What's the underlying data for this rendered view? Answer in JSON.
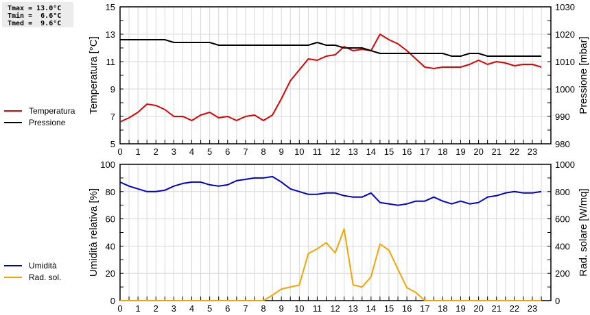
{
  "stats": {
    "lines": [
      "Tmax = 13.0°C",
      "Tmin =  6.6°C",
      "Tmed =  9.6°C"
    ]
  },
  "legend_top": [
    {
      "label": "Temperatura",
      "color": "#e00000"
    },
    {
      "label": "Pressione",
      "color": "#000000"
    }
  ],
  "legend_bottom": [
    {
      "label": "Umidità",
      "color": "#0000cc"
    },
    {
      "label": "Rad. sol.",
      "color": "#f5a300"
    }
  ],
  "chart_data": [
    {
      "type": "line",
      "title": "",
      "xlabel": "",
      "ylabel": "Temperatura [°C]",
      "y2label": "Pressione [mbar]",
      "ylim": [
        5,
        15
      ],
      "y2lim": [
        980,
        1030
      ],
      "yticks": [
        5,
        7,
        9,
        11,
        13,
        15
      ],
      "y2ticks": [
        980,
        990,
        1000,
        1010,
        1020,
        1030
      ],
      "xticks": [
        0,
        1,
        2,
        3,
        4,
        5,
        6,
        7,
        8,
        9,
        10,
        11,
        12,
        13,
        14,
        15,
        16,
        17,
        18,
        19,
        20,
        21,
        22,
        23
      ],
      "grid": true,
      "legend_position": "left",
      "x": [
        0,
        0.5,
        1,
        1.5,
        2,
        2.5,
        3,
        3.5,
        4,
        4.5,
        5,
        5.5,
        6,
        6.5,
        7,
        7.5,
        8,
        8.5,
        9,
        9.5,
        10,
        10.5,
        11,
        11.5,
        12,
        12.5,
        13,
        13.5,
        14,
        14.5,
        15,
        15.5,
        16,
        16.5,
        17,
        17.5,
        18,
        18.5,
        19,
        19.5,
        20,
        20.5,
        21,
        21.5,
        22,
        22.5,
        23,
        23.5
      ],
      "series": [
        {
          "name": "Temperatura",
          "axis": "left",
          "color": "#e00000",
          "values": [
            6.6,
            6.9,
            7.3,
            7.9,
            7.8,
            7.5,
            7.0,
            7.0,
            6.7,
            7.1,
            7.3,
            6.9,
            7.0,
            6.7,
            7.0,
            7.1,
            6.7,
            7.1,
            8.3,
            9.6,
            10.4,
            11.2,
            11.1,
            11.4,
            11.5,
            12.1,
            11.8,
            11.9,
            11.8,
            13.0,
            12.6,
            12.3,
            11.8,
            11.2,
            10.6,
            10.5,
            10.6,
            10.6,
            10.6,
            10.8,
            11.1,
            10.8,
            11.0,
            10.9,
            10.7,
            10.8,
            10.8,
            10.6
          ]
        },
        {
          "name": "Pressione",
          "axis": "right",
          "color": "#000000",
          "values": [
            1018,
            1018,
            1018,
            1018,
            1018,
            1018,
            1017,
            1017,
            1017,
            1017,
            1017,
            1016,
            1016,
            1016,
            1016,
            1016,
            1016,
            1016,
            1016,
            1016,
            1016,
            1016,
            1017,
            1016,
            1016,
            1015,
            1015,
            1015,
            1014,
            1013,
            1013,
            1013,
            1013,
            1013,
            1013,
            1013,
            1013,
            1012,
            1012,
            1013,
            1013,
            1012,
            1012,
            1012,
            1012,
            1012,
            1012,
            1012
          ]
        }
      ]
    },
    {
      "type": "line",
      "title": "",
      "xlabel": "",
      "ylabel": "Umidità relativa [%]",
      "y2label": "Rad. solare [W/mq]",
      "ylim": [
        0,
        100
      ],
      "y2lim": [
        0,
        1000
      ],
      "yticks": [
        0,
        20,
        40,
        60,
        80,
        100
      ],
      "y2ticks": [
        0,
        200,
        400,
        600,
        800,
        1000
      ],
      "xticks": [
        0,
        1,
        2,
        3,
        4,
        5,
        6,
        7,
        8,
        9,
        10,
        11,
        12,
        13,
        14,
        15,
        16,
        17,
        18,
        19,
        20,
        21,
        22,
        23
      ],
      "grid": true,
      "legend_position": "left",
      "x": [
        0,
        0.5,
        1,
        1.5,
        2,
        2.5,
        3,
        3.5,
        4,
        4.5,
        5,
        5.5,
        6,
        6.5,
        7,
        7.5,
        8,
        8.5,
        9,
        9.5,
        10,
        10.5,
        11,
        11.5,
        12,
        12.5,
        13,
        13.5,
        14,
        14.5,
        15,
        15.5,
        16,
        16.5,
        17,
        17.5,
        18,
        18.5,
        19,
        19.5,
        20,
        20.5,
        21,
        21.5,
        22,
        22.5,
        23,
        23.5
      ],
      "series": [
        {
          "name": "Umidità",
          "axis": "left",
          "color": "#0000cc",
          "values": [
            87,
            84,
            82,
            80,
            80,
            81,
            84,
            86,
            87,
            87,
            85,
            84,
            85,
            88,
            89,
            90,
            90,
            91,
            87,
            82,
            80,
            78,
            78,
            79,
            79,
            77,
            76,
            76,
            79,
            72,
            71,
            70,
            71,
            73,
            73,
            76,
            73,
            71,
            73,
            71,
            72,
            76,
            77,
            79,
            80,
            79,
            79,
            80
          ]
        },
        {
          "name": "Rad. sol.",
          "axis": "right",
          "color": "#f5a300",
          "values": [
            0,
            0,
            0,
            0,
            0,
            0,
            0,
            0,
            0,
            0,
            0,
            0,
            0,
            0,
            0,
            0,
            0,
            40,
            85,
            100,
            115,
            345,
            380,
            425,
            350,
            525,
            115,
            100,
            175,
            415,
            370,
            230,
            95,
            60,
            0,
            0,
            0,
            0,
            0,
            0,
            0,
            0,
            0,
            0,
            0,
            0,
            0,
            0
          ]
        }
      ]
    }
  ]
}
